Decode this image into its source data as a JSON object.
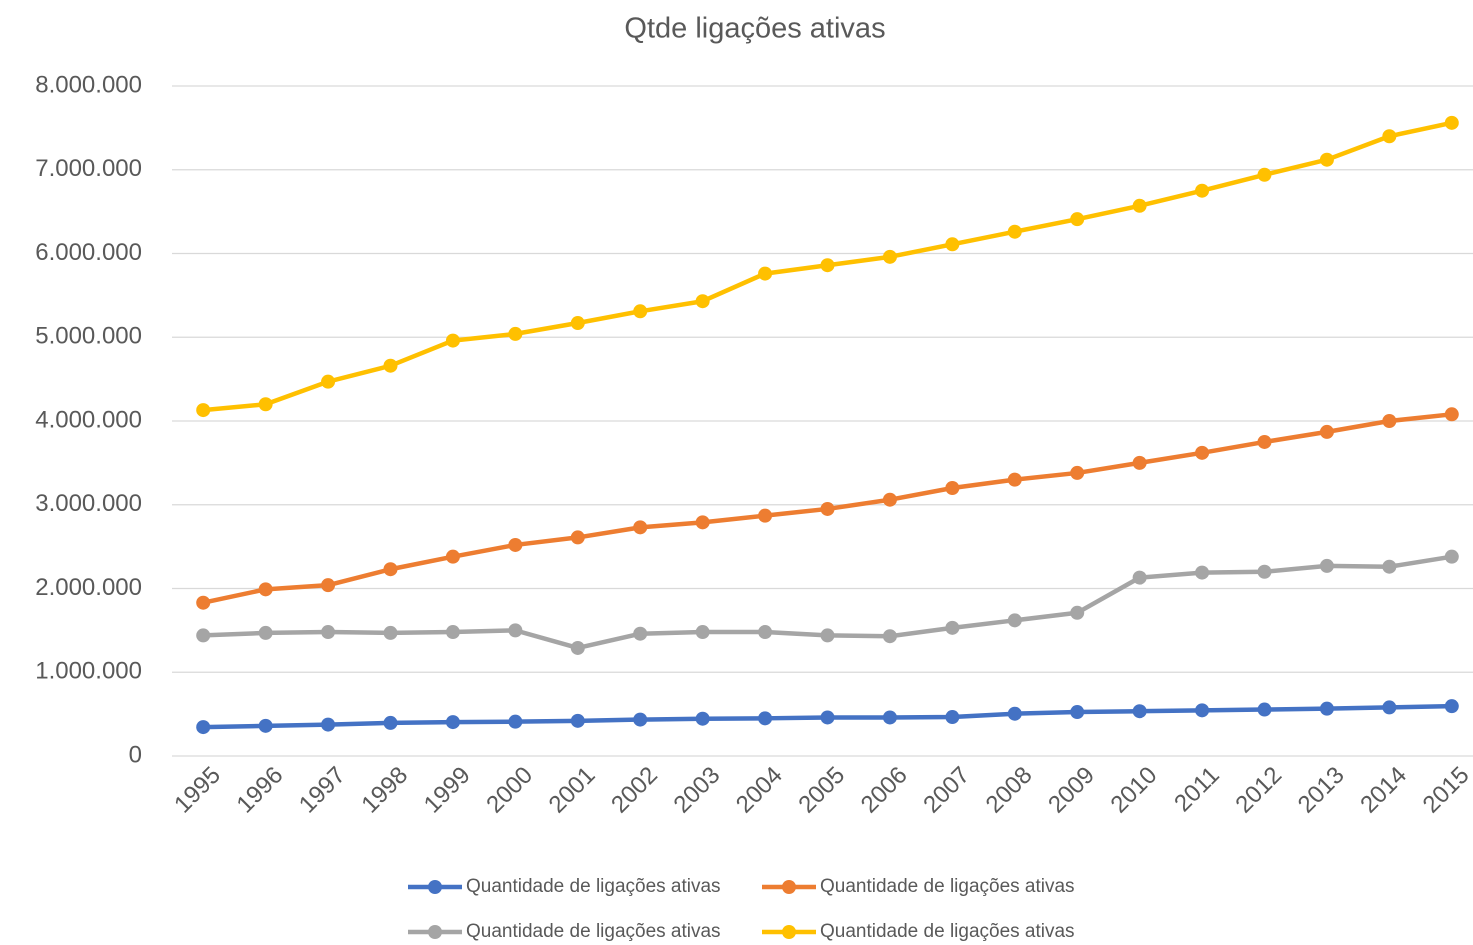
{
  "chart_data": {
    "type": "line",
    "title": "Qtde ligações ativas",
    "categories": [
      "1995",
      "1996",
      "1997",
      "1998",
      "1999",
      "2000",
      "2001",
      "2002",
      "2003",
      "2004",
      "2005",
      "2006",
      "2007",
      "2008",
      "2009",
      "2010",
      "2011",
      "2012",
      "2013",
      "2014",
      "2015"
    ],
    "series": [
      {
        "name": "Quantidade de ligações ativas",
        "color": "#4472c4",
        "values": [
          345000,
          360000,
          375000,
          395000,
          405000,
          410000,
          420000,
          435000,
          445000,
          450000,
          460000,
          460000,
          465000,
          505000,
          525000,
          535000,
          545000,
          555000,
          565000,
          580000,
          595000
        ]
      },
      {
        "name": "Quantidade de ligações ativas",
        "color": "#ed7d31",
        "values": [
          1830000,
          1990000,
          2040000,
          2230000,
          2380000,
          2520000,
          2610000,
          2730000,
          2790000,
          2870000,
          2950000,
          3060000,
          3200000,
          3300000,
          3380000,
          3500000,
          3620000,
          3750000,
          3870000,
          4000000,
          4080000
        ]
      },
      {
        "name": "Quantidade de ligações ativas",
        "color": "#a5a5a5",
        "values": [
          1440000,
          1470000,
          1480000,
          1470000,
          1480000,
          1500000,
          1290000,
          1460000,
          1480000,
          1480000,
          1440000,
          1430000,
          1530000,
          1620000,
          1710000,
          2130000,
          2190000,
          2200000,
          2270000,
          2260000,
          2380000
        ]
      },
      {
        "name": "Quantidade de ligações ativas",
        "color": "#ffc000",
        "values": [
          4130000,
          4200000,
          4470000,
          4660000,
          4960000,
          5040000,
          5170000,
          5310000,
          5430000,
          5760000,
          5860000,
          5960000,
          6110000,
          6260000,
          6410000,
          6570000,
          6750000,
          6940000,
          7120000,
          7400000,
          7560000
        ]
      }
    ],
    "ylim": [
      0,
      8000000
    ],
    "yticks": [
      0,
      {
        "value": 1000000,
        "label": "1.000.000"
      },
      {
        "value": 2000000,
        "label": "2.000.000"
      },
      {
        "value": 3000000,
        "label": "3.000.000"
      },
      {
        "value": 4000000,
        "label": "4.000.000"
      },
      {
        "value": 5000000,
        "label": "5.000.000"
      },
      {
        "value": 6000000,
        "label": "6.000.000"
      },
      {
        "value": 7000000,
        "label": "7.000.000"
      },
      {
        "value": 8000000,
        "label": "8.000.000"
      }
    ],
    "grid": true,
    "legend": "bottom"
  }
}
